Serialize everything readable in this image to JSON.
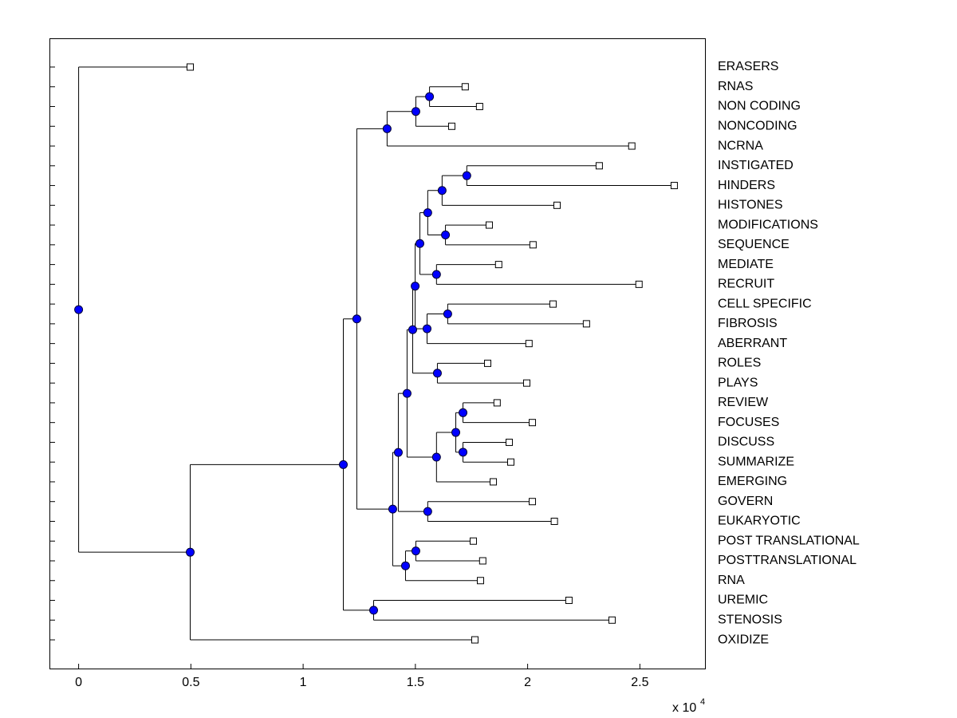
{
  "chart_data": {
    "type": "dendrogram",
    "xlim": [
      -0.13,
      2.79
    ],
    "xticks": [
      0,
      0.5,
      1,
      1.5,
      2,
      2.5
    ],
    "x_multiplier": {
      "base": "x 10",
      "exponent": "4"
    },
    "leaf_color": "#ffffff",
    "node_color": "#0000ff",
    "tree": {
      "x": 0,
      "children": [
        {
          "label": "ERASERS",
          "x": 0.497
        },
        {
          "x": 0.497,
          "children": [
            {
              "x": 1.179,
              "children": [
                {
                  "x": 1.239,
                  "children": [
                    {
                      "x": 1.374,
                      "children": [
                        {
                          "x": 1.502,
                          "children": [
                            {
                              "x": 1.563,
                              "children": [
                                {
                                  "label": "RNAS",
                                  "x": 1.722
                                },
                                {
                                  "label": "NON CODING",
                                  "x": 1.786
                                }
                              ]
                            },
                            {
                              "label": "NONCODING",
                              "x": 1.662
                            }
                          ]
                        },
                        {
                          "label": "NCRNA",
                          "x": 2.464
                        }
                      ]
                    },
                    {
                      "x": 1.399,
                      "children": [
                        {
                          "x": 1.424,
                          "children": [
                            {
                              "x": 1.463,
                              "children": [
                                {
                                  "x": 1.488,
                                  "children": [
                                    {
                                      "x": 1.499,
                                      "children": [
                                        {
                                          "x": 1.52,
                                          "children": [
                                            {
                                              "x": 1.555,
                                              "children": [
                                                {
                                                  "x": 1.619,
                                                  "children": [
                                                    {
                                                      "x": 1.729,
                                                      "children": [
                                                        {
                                                          "label": "INSTIGATED",
                                                          "x": 2.319
                                                        },
                                                        {
                                                          "label": "HINDERS",
                                                          "x": 2.653
                                                        }
                                                      ]
                                                    },
                                                    {
                                                      "label": "HISTONES",
                                                      "x": 2.131
                                                    }
                                                  ]
                                                },
                                                {
                                                  "x": 1.634,
                                                  "children": [
                                                    {
                                                      "label": "MODIFICATIONS",
                                                      "x": 1.829
                                                    },
                                                    {
                                                      "label": "SEQUENCE",
                                                      "x": 2.024
                                                    }
                                                  ]
                                                }
                                              ]
                                            },
                                            {
                                              "x": 1.594,
                                              "children": [
                                                {
                                                  "label": "MEDIATE",
                                                  "x": 1.871
                                                },
                                                {
                                                  "label": "RECRUIT",
                                                  "x": 2.496
                                                }
                                              ]
                                            }
                                          ]
                                        },
                                        {
                                          "x": 1.552,
                                          "children": [
                                            {
                                              "x": 1.644,
                                              "children": [
                                                {
                                                  "label": "CELL SPECIFIC",
                                                  "x": 2.113
                                                },
                                                {
                                                  "label": "FIBROSIS",
                                                  "x": 2.262
                                                }
                                              ]
                                            },
                                            {
                                              "label": "ABERRANT",
                                              "x": 2.006
                                            }
                                          ]
                                        }
                                      ]
                                    },
                                    {
                                      "x": 1.598,
                                      "children": [
                                        {
                                          "label": "ROLES",
                                          "x": 1.822
                                        },
                                        {
                                          "label": "PLAYS",
                                          "x": 1.996
                                        }
                                      ]
                                    }
                                  ]
                                },
                                {
                                  "x": 1.594,
                                  "children": [
                                    {
                                      "x": 1.68,
                                      "children": [
                                        {
                                          "x": 1.712,
                                          "children": [
                                            {
                                              "label": "REVIEW",
                                              "x": 1.864
                                            },
                                            {
                                              "label": "FOCUSES",
                                              "x": 2.021
                                            }
                                          ]
                                        },
                                        {
                                          "x": 1.712,
                                          "children": [
                                            {
                                              "label": "DISCUSS",
                                              "x": 1.918
                                            },
                                            {
                                              "label": "SUMMARIZE",
                                              "x": 1.925
                                            }
                                          ]
                                        }
                                      ]
                                    },
                                    {
                                      "label": "EMERGING",
                                      "x": 1.847
                                    }
                                  ]
                                }
                              ]
                            },
                            {
                              "x": 1.555,
                              "children": [
                                {
                                  "label": "GOVERN",
                                  "x": 2.021
                                },
                                {
                                  "label": "EUKARYOTIC",
                                  "x": 2.119
                                }
                              ]
                            }
                          ]
                        },
                        {
                          "x": 1.456,
                          "children": [
                            {
                              "x": 1.502,
                              "children": [
                                {
                                  "label": "POST TRANSLATIONAL",
                                  "x": 1.758
                                },
                                {
                                  "label": "POSTTRANSLATIONAL",
                                  "x": 1.8
                                }
                              ]
                            },
                            {
                              "label": "RNA",
                              "x": 1.79
                            }
                          ]
                        }
                      ]
                    }
                  ]
                },
                {
                  "x": 1.314,
                  "children": [
                    {
                      "label": "UREMIC",
                      "x": 2.184
                    },
                    {
                      "label": "STENOSIS",
                      "x": 2.376
                    }
                  ]
                }
              ]
            },
            {
              "label": "OXIDIZE",
              "x": 1.765
            }
          ]
        }
      ]
    }
  }
}
